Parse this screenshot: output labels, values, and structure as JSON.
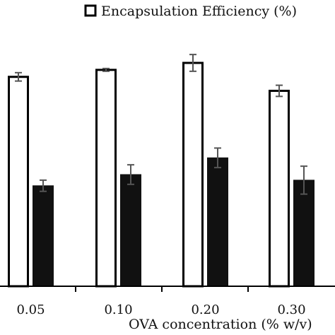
{
  "chart_data": {
    "type": "bar",
    "title": "",
    "xlabel": "OVA concentration (% w/v)",
    "ylabel": "",
    "categories": [
      "0.05",
      "0.10",
      "0.20",
      "0.30"
    ],
    "ylim": [
      0,
      100
    ],
    "grid": false,
    "legend_placement": "top-right",
    "series": [
      {
        "name": "Encapsulation Efficiency (%)",
        "fill": "#ffffff",
        "stroke": "#000000",
        "values": [
          75,
          77.5,
          80,
          70
        ],
        "errors": [
          1.5,
          0.5,
          3,
          2
        ]
      },
      {
        "name": "",
        "fill": "#111111",
        "stroke": "#111111",
        "values": [
          36,
          40,
          46,
          38
        ],
        "errors": [
          2,
          3.5,
          3.5,
          5
        ]
      }
    ]
  }
}
